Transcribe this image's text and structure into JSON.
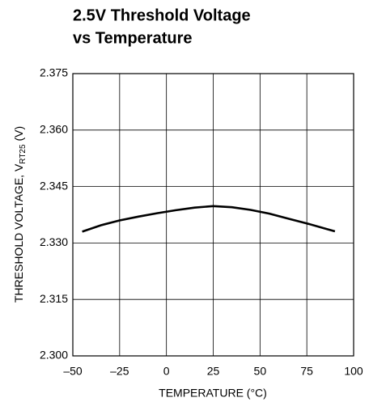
{
  "chart_data": {
    "type": "line",
    "title": [
      "2.5V Threshold Voltage",
      "vs Temperature"
    ],
    "xlabel": "TEMPERATURE (°C)",
    "ylabel": [
      "THRESHOLD VOLTAGE, V",
      "RT25",
      " (V)"
    ],
    "x": [
      -45,
      -35,
      -25,
      -15,
      -5,
      5,
      15,
      25,
      35,
      45,
      55,
      65,
      75,
      85,
      90
    ],
    "values": [
      2.333,
      2.3347,
      2.336,
      2.337,
      2.3379,
      2.3387,
      2.3394,
      2.3398,
      2.3395,
      2.3388,
      2.3378,
      2.3365,
      2.3352,
      2.3338,
      2.3331
    ],
    "color": "#000000",
    "xlim": [
      -50,
      100
    ],
    "xticks": [
      {
        "value": -50,
        "label": "–50"
      },
      {
        "value": -25,
        "label": "–25"
      },
      0,
      25,
      50,
      75,
      100
    ],
    "ylim": [
      2.3,
      2.375
    ],
    "yticks": [
      {
        "value": 2.3,
        "label": "2.300"
      },
      2.315,
      {
        "value": 2.33,
        "label": "2.330"
      },
      2.345,
      {
        "value": 2.36,
        "label": "2.360"
      },
      2.375
    ],
    "grid": true
  }
}
